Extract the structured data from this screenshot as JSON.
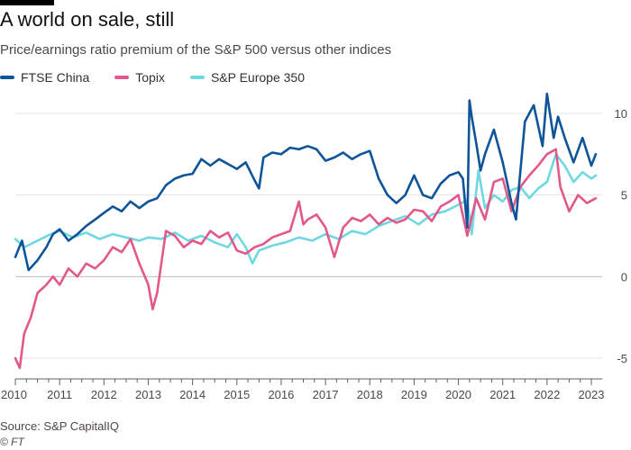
{
  "header": {
    "title": "A world on sale, still",
    "subtitle": "Price/earnings ratio premium of the S&P 500 versus other indices"
  },
  "footer": {
    "source": "Source: S&P CapitalIQ",
    "credit": "© FT"
  },
  "chart_data": {
    "type": "line",
    "title": "A world on sale, still",
    "subtitle": "Price/earnings ratio premium of the S&P 500 versus other indices",
    "xlabel": "",
    "ylabel": "",
    "xlim": [
      2010,
      2023.25
    ],
    "ylim": [
      -5.5,
      11
    ],
    "x_ticks": [
      "2010",
      "2011",
      "2012",
      "2013",
      "2014",
      "2015",
      "2016",
      "2017",
      "2018",
      "2019",
      "2020",
      "2021",
      "2022",
      "2023"
    ],
    "y_ticks": [
      "10",
      "5",
      "0",
      "-5"
    ],
    "y_tick_values": [
      10,
      5,
      0,
      -5
    ],
    "grid": "horizontal",
    "legend_position": "top-left",
    "series": [
      {
        "name": "FTSE China",
        "color": "#0f5499",
        "x": [
          2010.0,
          2010.15,
          2010.3,
          2010.5,
          2010.7,
          2010.85,
          2011.0,
          2011.2,
          2011.4,
          2011.6,
          2011.8,
          2012.0,
          2012.2,
          2012.4,
          2012.6,
          2012.8,
          2013.0,
          2013.2,
          2013.4,
          2013.6,
          2013.8,
          2014.0,
          2014.2,
          2014.4,
          2014.6,
          2014.8,
          2015.0,
          2015.2,
          2015.4,
          2015.5,
          2015.6,
          2015.8,
          2016.0,
          2016.2,
          2016.4,
          2016.6,
          2016.8,
          2017.0,
          2017.2,
          2017.4,
          2017.6,
          2017.8,
          2018.0,
          2018.2,
          2018.4,
          2018.6,
          2018.8,
          2019.0,
          2019.2,
          2019.4,
          2019.6,
          2019.8,
          2020.0,
          2020.1,
          2020.2,
          2020.25,
          2020.3,
          2020.4,
          2020.5,
          2020.6,
          2020.8,
          2021.0,
          2021.2,
          2021.3,
          2021.5,
          2021.7,
          2021.9,
          2022.0,
          2022.15,
          2022.25,
          2022.4,
          2022.6,
          2022.8,
          2023.0,
          2023.1
        ],
        "values": [
          1.2,
          2.2,
          0.4,
          1.0,
          1.8,
          2.6,
          2.9,
          2.2,
          2.6,
          3.1,
          3.5,
          3.9,
          4.3,
          4.0,
          4.6,
          4.2,
          4.6,
          4.8,
          5.6,
          6.0,
          6.2,
          6.3,
          7.2,
          6.8,
          7.2,
          6.9,
          6.6,
          7.0,
          5.9,
          5.4,
          7.3,
          7.6,
          7.5,
          7.9,
          7.8,
          8.0,
          7.8,
          7.1,
          7.3,
          7.6,
          7.2,
          7.5,
          7.7,
          6.0,
          5.0,
          4.5,
          5.0,
          6.2,
          5.0,
          4.8,
          5.7,
          6.2,
          6.4,
          6.0,
          3.0,
          10.8,
          9.8,
          8.2,
          6.5,
          7.5,
          9.0,
          7.0,
          4.5,
          3.5,
          9.5,
          10.5,
          8.0,
          11.2,
          8.5,
          9.8,
          8.5,
          7.0,
          8.5,
          6.8,
          7.5
        ]
      },
      {
        "name": "Topix",
        "color": "#e2588a",
        "x": [
          2010.0,
          2010.1,
          2010.2,
          2010.35,
          2010.5,
          2010.7,
          2010.85,
          2011.0,
          2011.2,
          2011.4,
          2011.6,
          2011.8,
          2012.0,
          2012.2,
          2012.4,
          2012.6,
          2012.8,
          2013.0,
          2013.1,
          2013.2,
          2013.4,
          2013.6,
          2013.8,
          2014.0,
          2014.2,
          2014.4,
          2014.6,
          2014.8,
          2015.0,
          2015.2,
          2015.4,
          2015.6,
          2015.8,
          2016.0,
          2016.2,
          2016.4,
          2016.5,
          2016.6,
          2016.8,
          2017.0,
          2017.2,
          2017.4,
          2017.6,
          2017.8,
          2018.0,
          2018.2,
          2018.4,
          2018.6,
          2018.8,
          2019.0,
          2019.2,
          2019.4,
          2019.6,
          2019.8,
          2020.0,
          2020.2,
          2020.4,
          2020.6,
          2020.8,
          2021.0,
          2021.2,
          2021.4,
          2021.6,
          2021.8,
          2022.0,
          2022.2,
          2022.3,
          2022.5,
          2022.7,
          2022.9,
          2023.1
        ],
        "values": [
          -5.0,
          -5.6,
          -3.5,
          -2.5,
          -1.0,
          -0.5,
          0.0,
          -0.5,
          0.5,
          0.0,
          0.8,
          0.5,
          1.0,
          1.8,
          1.5,
          2.3,
          0.8,
          -0.5,
          -2.0,
          -1.0,
          2.8,
          2.5,
          1.8,
          2.2,
          2.0,
          2.8,
          2.4,
          2.7,
          1.6,
          1.4,
          1.8,
          2.0,
          2.4,
          2.6,
          2.8,
          4.6,
          3.2,
          3.5,
          3.8,
          3.0,
          1.2,
          3.0,
          3.6,
          3.4,
          3.8,
          3.2,
          3.6,
          3.3,
          3.5,
          4.1,
          4.0,
          3.4,
          4.3,
          4.6,
          5.0,
          2.5,
          4.8,
          3.5,
          5.8,
          6.0,
          4.0,
          5.5,
          6.2,
          6.8,
          7.5,
          7.8,
          5.5,
          4.0,
          5.0,
          4.5,
          4.8
        ]
      },
      {
        "name": "S&P Europe 350",
        "color": "#70d8e0",
        "x": [
          2010.0,
          2010.2,
          2010.5,
          2010.8,
          2011.0,
          2011.3,
          2011.6,
          2011.9,
          2012.2,
          2012.5,
          2012.8,
          2013.0,
          2013.3,
          2013.6,
          2013.9,
          2014.2,
          2014.5,
          2014.8,
          2015.0,
          2015.2,
          2015.35,
          2015.5,
          2015.8,
          2016.1,
          2016.4,
          2016.7,
          2017.0,
          2017.3,
          2017.6,
          2017.9,
          2018.2,
          2018.5,
          2018.8,
          2019.1,
          2019.4,
          2019.7,
          2020.0,
          2020.2,
          2020.3,
          2020.45,
          2020.6,
          2020.8,
          2021.0,
          2021.2,
          2021.4,
          2021.6,
          2021.8,
          2022.0,
          2022.2,
          2022.4,
          2022.6,
          2022.8,
          2023.0,
          2023.1
        ],
        "values": [
          2.3,
          1.8,
          2.2,
          2.6,
          2.8,
          2.4,
          2.7,
          2.3,
          2.6,
          2.4,
          2.2,
          2.4,
          2.3,
          2.7,
          2.2,
          2.5,
          2.1,
          1.8,
          2.6,
          1.8,
          0.8,
          1.6,
          1.9,
          2.1,
          2.4,
          2.2,
          2.6,
          2.3,
          2.8,
          2.6,
          3.1,
          3.4,
          3.7,
          3.2,
          3.8,
          4.0,
          4.4,
          4.7,
          2.6,
          6.5,
          4.2,
          5.0,
          4.6,
          5.3,
          5.5,
          4.8,
          5.4,
          5.8,
          7.5,
          6.8,
          5.8,
          6.4,
          6.0,
          6.2
        ]
      }
    ]
  }
}
